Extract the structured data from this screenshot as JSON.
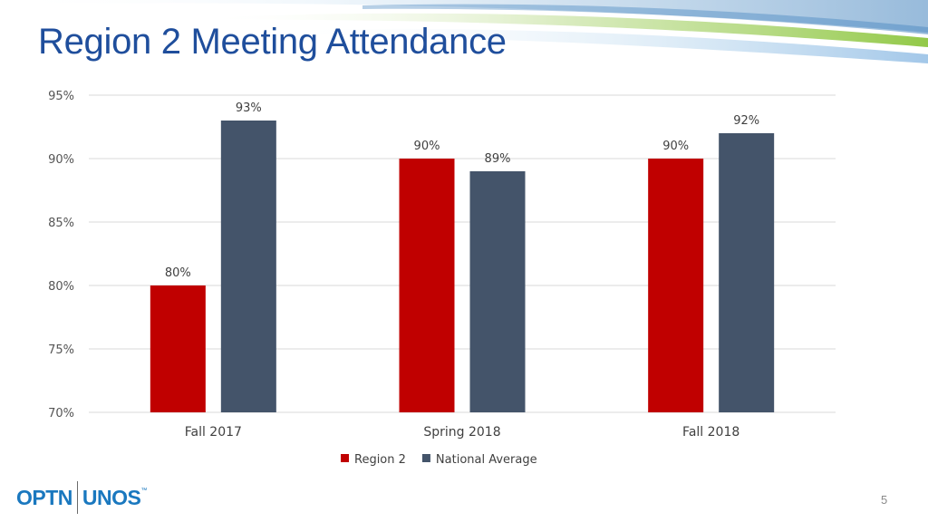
{
  "slide": {
    "title": "Region 2 Meeting Attendance",
    "page_number": "5",
    "logo": {
      "left": "OPTN",
      "right": "UNOS",
      "mark": "™"
    }
  },
  "colors": {
    "title": "#1f4e9c",
    "region2": "#c00000",
    "national": "#44546a",
    "gridline": "#d9d9d9",
    "swoosh_blue": "#2e75b6",
    "swoosh_green": "#8dc63f"
  },
  "chart_data": {
    "type": "bar",
    "categories": [
      "Fall 2017",
      "Spring 2018",
      "Fall 2018"
    ],
    "series": [
      {
        "name": "Region 2",
        "values": [
          80,
          90,
          90
        ],
        "labels": [
          "80%",
          "90%",
          "90%"
        ],
        "color": "#c00000"
      },
      {
        "name": "National Average",
        "values": [
          93,
          89,
          92
        ],
        "labels": [
          "93%",
          "89%",
          "92%"
        ],
        "color": "#44546a"
      }
    ],
    "yticks": [
      70,
      75,
      80,
      85,
      90,
      95
    ],
    "ytick_labels": [
      "70%",
      "75%",
      "80%",
      "85%",
      "90%",
      "95%"
    ],
    "ylim": [
      70,
      95
    ],
    "grid": true,
    "legend": "bottom"
  }
}
